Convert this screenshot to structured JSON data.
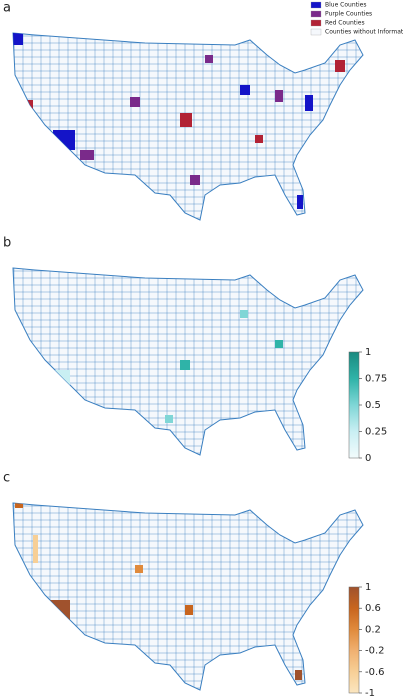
{
  "panels": [
    {
      "label": "a",
      "legend": [
        {
          "name": "Blue Counties",
          "color": "#1414c8"
        },
        {
          "name": "Purple Counties",
          "color": "#7a2a8a"
        },
        {
          "name": "Red Counties",
          "color": "#b22234"
        },
        {
          "name": "Counties without Information",
          "color": "#f5f8fc"
        }
      ]
    },
    {
      "label": "b",
      "colorbar": {
        "ticks": [
          1,
          0.75,
          0.5,
          0.25,
          0
        ],
        "colors": [
          "#1b8a80",
          "#2fb3a8",
          "#7fd6d6",
          "#c9eff3",
          "#f2fbfc"
        ]
      }
    },
    {
      "label": "c",
      "colorbar": {
        "ticks": [
          1,
          0.6,
          0.2,
          -0.2,
          -0.6,
          -1
        ],
        "colors": [
          "#a0522d",
          "#c8651e",
          "#e08a3c",
          "#f0b070",
          "#f7cf96",
          "#fbe6c0"
        ]
      }
    }
  ]
}
